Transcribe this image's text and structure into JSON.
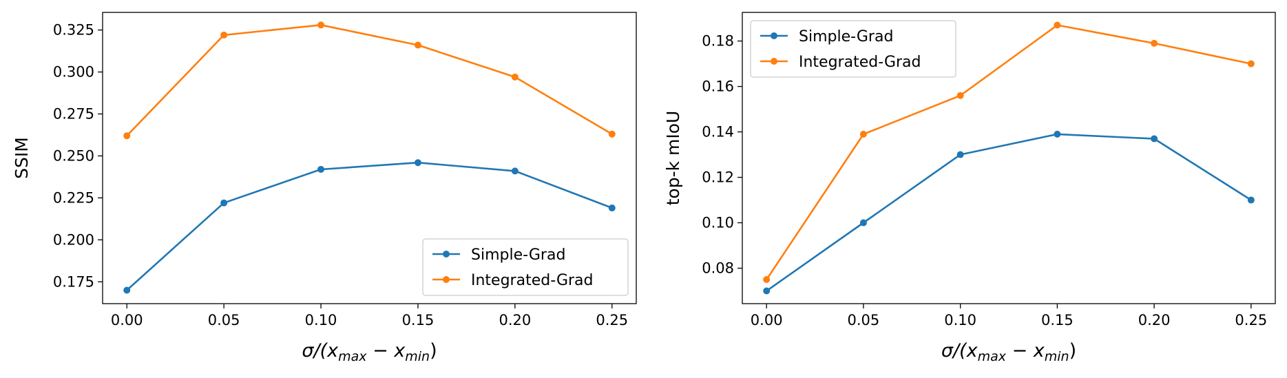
{
  "colors": {
    "simple": "#1f77b4",
    "integrated": "#ff7f0e",
    "axis": "#000000",
    "legend_border": "#cccccc",
    "background": "#ffffff"
  },
  "chart_data": [
    {
      "type": "line",
      "title": "",
      "xlabel_parts": {
        "sigma": "σ/(",
        "x1": "x",
        "sub1": "max",
        "minus": " − ",
        "x2": "x",
        "sub2": "min",
        "close": ")"
      },
      "ylabel": "SSIM",
      "x": [
        0.0,
        0.05,
        0.1,
        0.15,
        0.2,
        0.25
      ],
      "xticks": [
        0.0,
        0.05,
        0.1,
        0.15,
        0.2,
        0.25
      ],
      "xtick_labels": [
        "0.00",
        "0.05",
        "0.10",
        "0.15",
        "0.20",
        "0.25"
      ],
      "yticks": [
        0.175,
        0.2,
        0.225,
        0.25,
        0.275,
        0.3,
        0.325
      ],
      "ytick_labels": [
        "0.175",
        "0.200",
        "0.225",
        "0.250",
        "0.275",
        "0.300",
        "0.325"
      ],
      "xlim": [
        -0.0125,
        0.2625
      ],
      "ylim": [
        0.162,
        0.3355
      ],
      "legend_position": "lower-right",
      "series": [
        {
          "name": "Simple-Grad",
          "color_key": "simple",
          "values": [
            0.17,
            0.222,
            0.242,
            0.246,
            0.241,
            0.219
          ]
        },
        {
          "name": "Integrated-Grad",
          "color_key": "integrated",
          "values": [
            0.262,
            0.322,
            0.328,
            0.316,
            0.297,
            0.263
          ]
        }
      ]
    },
    {
      "type": "line",
      "title": "",
      "xlabel_parts": {
        "sigma": "σ/(",
        "x1": "x",
        "sub1": "max",
        "minus": " − ",
        "x2": "x",
        "sub2": "min",
        "close": ")"
      },
      "ylabel": "top-k mIoU",
      "x": [
        0.0,
        0.05,
        0.1,
        0.15,
        0.2,
        0.25
      ],
      "xticks": [
        0.0,
        0.05,
        0.1,
        0.15,
        0.2,
        0.25
      ],
      "xtick_labels": [
        "0.00",
        "0.05",
        "0.10",
        "0.15",
        "0.20",
        "0.25"
      ],
      "yticks": [
        0.08,
        0.1,
        0.12,
        0.14,
        0.16,
        0.18
      ],
      "ytick_labels": [
        "0.08",
        "0.10",
        "0.12",
        "0.14",
        "0.16",
        "0.18"
      ],
      "xlim": [
        -0.0125,
        0.2625
      ],
      "ylim": [
        0.0644,
        0.1926
      ],
      "legend_position": "upper-left",
      "series": [
        {
          "name": "Simple-Grad",
          "color_key": "simple",
          "values": [
            0.07,
            0.1,
            0.13,
            0.139,
            0.137,
            0.11
          ]
        },
        {
          "name": "Integrated-Grad",
          "color_key": "integrated",
          "values": [
            0.075,
            0.139,
            0.156,
            0.187,
            0.179,
            0.17
          ]
        }
      ]
    }
  ]
}
